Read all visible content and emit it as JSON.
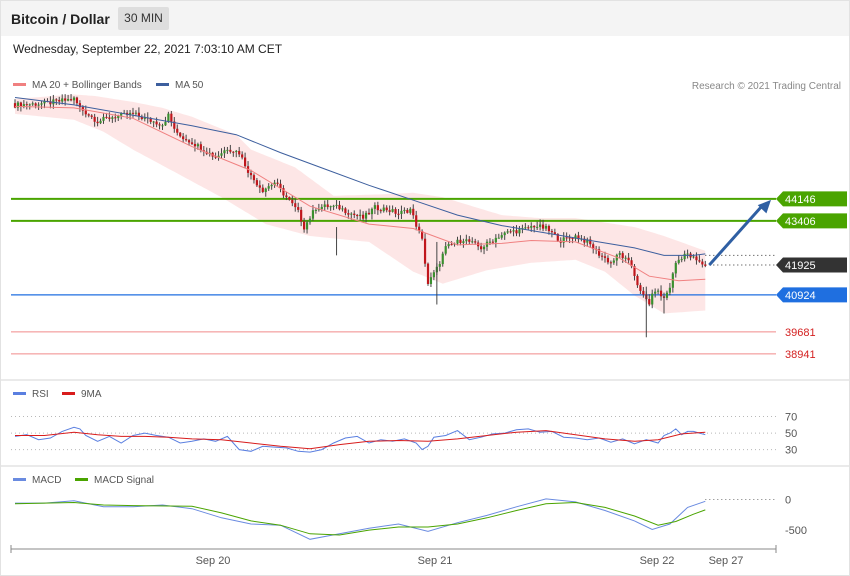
{
  "header": {
    "title": "Bitcoin / Dollar",
    "timeframe": "30 MIN"
  },
  "datetime": "Wednesday, September 22, 2021 7:03:10 AM CET",
  "credit": "Research © 2021 Trading Central",
  "colors": {
    "bullish": "#3a8f2e",
    "bearish": "#c0161c",
    "ma20": "#f08080",
    "ma50": "#3d5f9e",
    "band_fill": "#fde3e3",
    "resistance": "#4aa400",
    "pivot": "#1f6fe0",
    "support": "#f08a8a",
    "current": "#333333",
    "arrow": "#2f5fa3",
    "rsi": "#5a7fe0",
    "rsi_ma": "#d81c1c",
    "macd": "#6a8be0",
    "macd_signal": "#4aa400"
  },
  "chart_data": [
    {
      "type": "candlestick",
      "title": "Bitcoin / Dollar",
      "timeframe": "30 MIN",
      "legend": [
        "MA 20 + Bollinger Bands",
        "MA 50"
      ],
      "x_labels": [
        "Sep 20",
        "Sep 21",
        "Sep 22",
        "Sep 27"
      ],
      "ylim": [
        38200,
        47700
      ],
      "levels": [
        {
          "value": 44146,
          "label": "44146",
          "kind": "resistance"
        },
        {
          "value": 43406,
          "label": "43406",
          "kind": "resistance"
        },
        {
          "value": 41925,
          "label": "41925",
          "kind": "current"
        },
        {
          "value": 40924,
          "label": "40924",
          "kind": "pivot"
        },
        {
          "value": 39681,
          "label": "39681",
          "kind": "support"
        },
        {
          "value": 38941,
          "label": "38941",
          "kind": "support"
        }
      ],
      "forecast_arrow": {
        "from": 41925,
        "to": 44146,
        "direction": "up"
      },
      "close_path": [
        [
          0,
          47300
        ],
        [
          10,
          47350
        ],
        [
          20,
          47500
        ],
        [
          22,
          47200
        ],
        [
          28,
          46750
        ],
        [
          33,
          46900
        ],
        [
          40,
          47000
        ],
        [
          45,
          46800
        ],
        [
          50,
          46650
        ],
        [
          52,
          46950
        ],
        [
          55,
          46300
        ],
        [
          60,
          46050
        ],
        [
          68,
          45550
        ],
        [
          72,
          45850
        ],
        [
          76,
          45700
        ],
        [
          80,
          44900
        ],
        [
          84,
          44450
        ],
        [
          88,
          44700
        ],
        [
          92,
          44200
        ],
        [
          96,
          43700
        ],
        [
          98,
          43200
        ],
        [
          102,
          43850
        ],
        [
          106,
          43900
        ],
        [
          110,
          43850
        ],
        [
          114,
          43650
        ],
        [
          118,
          43500
        ],
        [
          122,
          43850
        ],
        [
          126,
          43800
        ],
        [
          130,
          43650
        ],
        [
          134,
          43800
        ],
        [
          138,
          42750
        ],
        [
          140,
          41300
        ],
        [
          143,
          41800
        ],
        [
          146,
          42500
        ],
        [
          152,
          42800
        ],
        [
          158,
          42500
        ],
        [
          164,
          42900
        ],
        [
          168,
          43050
        ],
        [
          172,
          43100
        ],
        [
          176,
          43250
        ],
        [
          180,
          43150
        ],
        [
          185,
          42750
        ],
        [
          190,
          42900
        ],
        [
          194,
          42700
        ],
        [
          198,
          42300
        ],
        [
          202,
          42000
        ],
        [
          205,
          42300
        ],
        [
          209,
          41900
        ],
        [
          212,
          41000
        ],
        [
          215,
          40650
        ],
        [
          217,
          41100
        ],
        [
          220,
          40800
        ],
        [
          222,
          41200
        ],
        [
          224,
          42000
        ],
        [
          227,
          42300
        ],
        [
          230,
          42150
        ],
        [
          232,
          42000
        ],
        [
          234,
          41925
        ]
      ],
      "ma20_path": [
        [
          0,
          47250
        ],
        [
          20,
          47200
        ],
        [
          40,
          46850
        ],
        [
          60,
          45900
        ],
        [
          80,
          45100
        ],
        [
          100,
          43900
        ],
        [
          120,
          43300
        ],
        [
          135,
          43150
        ],
        [
          150,
          42600
        ],
        [
          165,
          42650
        ],
        [
          175,
          42750
        ],
        [
          190,
          42700
        ],
        [
          205,
          42150
        ],
        [
          215,
          41550
        ],
        [
          225,
          41400
        ],
        [
          234,
          41450
        ]
      ],
      "upper_band": [
        [
          0,
          47500
        ],
        [
          20,
          47650
        ],
        [
          27,
          47600
        ],
        [
          40,
          47400
        ],
        [
          50,
          47200
        ],
        [
          60,
          46900
        ],
        [
          75,
          46300
        ],
        [
          80,
          45800
        ],
        [
          95,
          45200
        ],
        [
          108,
          44250
        ],
        [
          125,
          44300
        ],
        [
          135,
          44350
        ],
        [
          145,
          44200
        ],
        [
          165,
          43600
        ],
        [
          178,
          43500
        ],
        [
          190,
          43500
        ],
        [
          210,
          43200
        ],
        [
          220,
          42900
        ],
        [
          234,
          42400
        ]
      ],
      "lower_band": [
        [
          0,
          47000
        ],
        [
          20,
          46800
        ],
        [
          30,
          46400
        ],
        [
          40,
          45800
        ],
        [
          55,
          45000
        ],
        [
          70,
          44200
        ],
        [
          85,
          43300
        ],
        [
          100,
          42900
        ],
        [
          120,
          42700
        ],
        [
          135,
          41700
        ],
        [
          145,
          41300
        ],
        [
          160,
          41750
        ],
        [
          175,
          42000
        ],
        [
          190,
          42100
        ],
        [
          200,
          41700
        ],
        [
          210,
          40900
        ],
        [
          220,
          40300
        ],
        [
          234,
          40400
        ]
      ],
      "ma50_path": [
        [
          0,
          47550
        ],
        [
          20,
          47300
        ],
        [
          40,
          46950
        ],
        [
          60,
          46600
        ],
        [
          75,
          46300
        ],
        [
          90,
          45700
        ],
        [
          105,
          45150
        ],
        [
          120,
          44600
        ],
        [
          135,
          44100
        ],
        [
          150,
          43600
        ],
        [
          165,
          43250
        ],
        [
          180,
          43000
        ],
        [
          195,
          42750
        ],
        [
          210,
          42500
        ],
        [
          220,
          42250
        ],
        [
          230,
          42250
        ],
        [
          234,
          42300
        ]
      ]
    },
    {
      "type": "line",
      "legend": [
        "RSI",
        "9MA"
      ],
      "ylim": [
        15,
        90
      ],
      "ticks": [
        {
          "value": 70,
          "label": "70"
        },
        {
          "value": 50,
          "label": "50"
        },
        {
          "value": 30,
          "label": "30"
        }
      ],
      "series": [
        {
          "name": "RSI",
          "points": [
            [
              0,
              46
            ],
            [
              4,
              48
            ],
            [
              8,
              42
            ],
            [
              12,
              44
            ],
            [
              16,
              52
            ],
            [
              20,
              57
            ],
            [
              22,
              55
            ],
            [
              24,
              47
            ],
            [
              28,
              40
            ],
            [
              32,
              46
            ],
            [
              36,
              38
            ],
            [
              40,
              47
            ],
            [
              44,
              50
            ],
            [
              48,
              47
            ],
            [
              52,
              45
            ],
            [
              56,
              38
            ],
            [
              60,
              40
            ],
            [
              64,
              43
            ],
            [
              68,
              40
            ],
            [
              72,
              46
            ],
            [
              76,
              30
            ],
            [
              80,
              28
            ],
            [
              84,
              34
            ],
            [
              88,
              33
            ],
            [
              92,
              32
            ],
            [
              96,
              28
            ],
            [
              100,
              27
            ],
            [
              104,
              30
            ],
            [
              108,
              38
            ],
            [
              112,
              44
            ],
            [
              116,
              46
            ],
            [
              120,
              38
            ],
            [
              124,
              42
            ],
            [
              128,
              40
            ],
            [
              132,
              43
            ],
            [
              136,
              38
            ],
            [
              138,
              30
            ],
            [
              140,
              34
            ],
            [
              142,
              45
            ],
            [
              146,
              47
            ],
            [
              150,
              53
            ],
            [
              154,
              42
            ],
            [
              158,
              45
            ],
            [
              162,
              49
            ],
            [
              166,
              50
            ],
            [
              170,
              54
            ],
            [
              174,
              55
            ],
            [
              178,
              51
            ],
            [
              182,
              52
            ],
            [
              186,
              45
            ],
            [
              190,
              44
            ],
            [
              194,
              42
            ],
            [
              198,
              44
            ],
            [
              202,
              39
            ],
            [
              206,
              43
            ],
            [
              210,
              37
            ],
            [
              214,
              42
            ],
            [
              218,
              38
            ],
            [
              220,
              47
            ],
            [
              222,
              50
            ],
            [
              224,
              55
            ],
            [
              226,
              48
            ],
            [
              228,
              52
            ],
            [
              230,
              52
            ],
            [
              232,
              50
            ],
            [
              234,
              48
            ]
          ]
        },
        {
          "name": "9MA",
          "points": [
            [
              0,
              47
            ],
            [
              10,
              47
            ],
            [
              20,
              51
            ],
            [
              28,
              48
            ],
            [
              36,
              46
            ],
            [
              44,
              46
            ],
            [
              52,
              45
            ],
            [
              60,
              43
            ],
            [
              70,
              42
            ],
            [
              80,
              38
            ],
            [
              90,
              34
            ],
            [
              100,
              31
            ],
            [
              110,
              36
            ],
            [
              120,
              40
            ],
            [
              130,
              41
            ],
            [
              140,
              40
            ],
            [
              150,
              43
            ],
            [
              160,
              47
            ],
            [
              170,
              51
            ],
            [
              180,
              53
            ],
            [
              190,
              48
            ],
            [
              200,
              43
            ],
            [
              210,
              40
            ],
            [
              218,
              42
            ],
            [
              226,
              49
            ],
            [
              234,
              51
            ]
          ]
        }
      ]
    },
    {
      "type": "line",
      "legend": [
        "MACD",
        "MACD Signal"
      ],
      "ylim": [
        -760,
        220
      ],
      "ticks": [
        {
          "value": 0,
          "label": "0"
        },
        {
          "value": -500,
          "label": "-500"
        }
      ],
      "series": [
        {
          "name": "MACD",
          "points": [
            [
              0,
              -60
            ],
            [
              10,
              -60
            ],
            [
              20,
              -20
            ],
            [
              30,
              -120
            ],
            [
              40,
              -120
            ],
            [
              50,
              -90
            ],
            [
              60,
              -150
            ],
            [
              70,
              -300
            ],
            [
              80,
              -400
            ],
            [
              90,
              -420
            ],
            [
              100,
              -650
            ],
            [
              110,
              -560
            ],
            [
              120,
              -470
            ],
            [
              130,
              -400
            ],
            [
              140,
              -520
            ],
            [
              150,
              -380
            ],
            [
              160,
              -260
            ],
            [
              170,
              -120
            ],
            [
              180,
              10
            ],
            [
              190,
              -40
            ],
            [
              200,
              -180
            ],
            [
              210,
              -350
            ],
            [
              216,
              -490
            ],
            [
              222,
              -400
            ],
            [
              228,
              -130
            ],
            [
              234,
              -30
            ]
          ]
        },
        {
          "name": "MACD Signal",
          "points": [
            [
              0,
              -70
            ],
            [
              20,
              -50
            ],
            [
              30,
              -90
            ],
            [
              40,
              -100
            ],
            [
              60,
              -110
            ],
            [
              70,
              -220
            ],
            [
              80,
              -350
            ],
            [
              90,
              -420
            ],
            [
              100,
              -560
            ],
            [
              110,
              -580
            ],
            [
              120,
              -500
            ],
            [
              130,
              -450
            ],
            [
              140,
              -450
            ],
            [
              150,
              -400
            ],
            [
              160,
              -300
            ],
            [
              170,
              -180
            ],
            [
              180,
              -70
            ],
            [
              190,
              -50
            ],
            [
              200,
              -130
            ],
            [
              210,
              -270
            ],
            [
              218,
              -420
            ],
            [
              224,
              -360
            ],
            [
              230,
              -240
            ],
            [
              234,
              -170
            ]
          ]
        }
      ]
    }
  ]
}
